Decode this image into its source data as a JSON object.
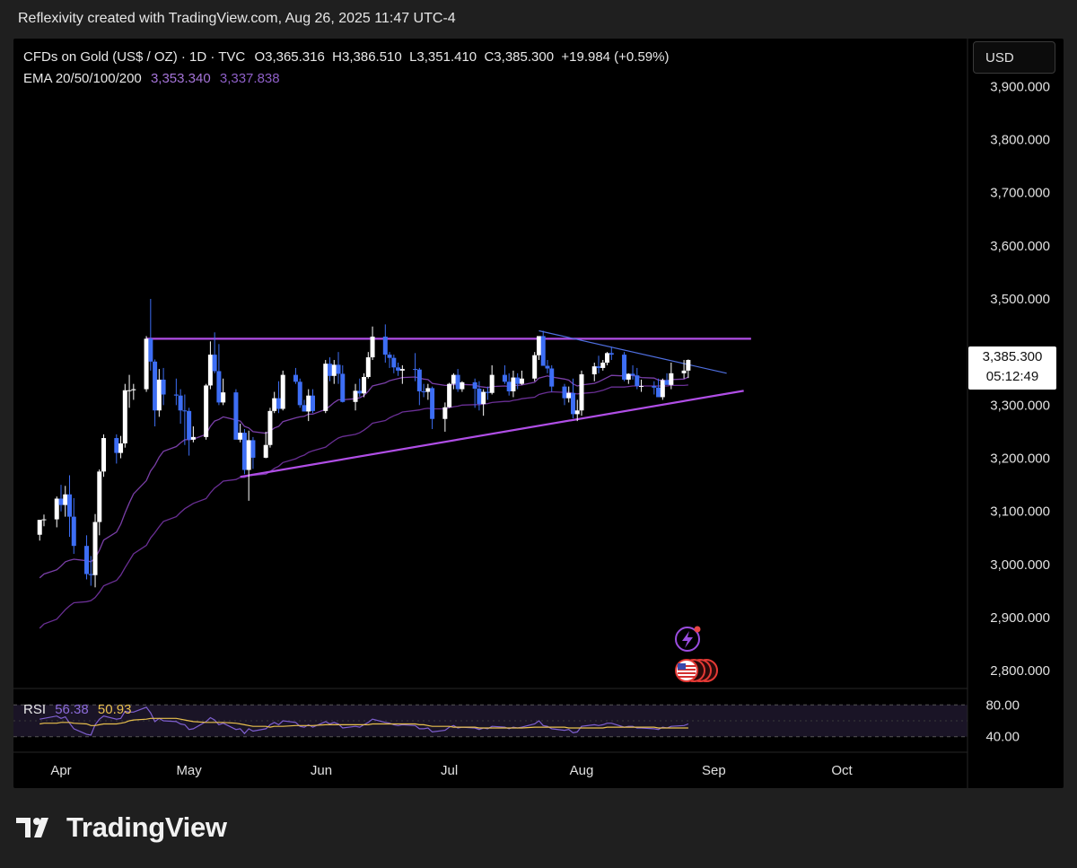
{
  "header": {
    "attribution": "Reflexivity created with TradingView.com, Aug 26, 2025 11:47 UTC-4"
  },
  "legend": {
    "symbol": "CFDs on Gold (US$ / OZ) · 1D · TVC",
    "ohlc": "O3,365.316  H3,386.510  L3,351.410  C3,385.300  +19.984 (+0.59%)",
    "ema_label": "EMA 20/50/100/200",
    "ema_value_1": "3,353.340",
    "ema_value_2": "3,337.838"
  },
  "price_axis": {
    "currency": "USD",
    "ticks": [
      "3,900.000",
      "3,800.000",
      "3,700.000",
      "3,600.000",
      "3,500.000",
      "3,400.000",
      "3,300.000",
      "3,200.000",
      "3,100.000",
      "3,000.000",
      "2,900.000",
      "2,800.000"
    ],
    "last_price": "3,385.300",
    "countdown": "05:12:49"
  },
  "time_axis": {
    "labels": [
      "Apr",
      "May",
      "Jun",
      "Jul",
      "Aug",
      "Sep",
      "Oct"
    ]
  },
  "rsi": {
    "label": "RSI",
    "value": "56.38",
    "ma_value": "50.93",
    "ticks": [
      "80.00",
      "40.00"
    ]
  },
  "footer": {
    "brand": "TradingView"
  },
  "colors": {
    "up_candle": "#ffffff",
    "down_candle": "#3d6ef5",
    "ema20": "#7a3fa8",
    "ema50": "#6a2f95",
    "trendline": "#b04ee6",
    "rsi_line": "#7e5fcf",
    "rsi_ma": "#e8c04d"
  },
  "chart_data": {
    "type": "candlestick",
    "title": "CFDs on Gold (US$ / OZ) · 1D · TVC",
    "ylim": [
      2770,
      3990
    ],
    "yticks": [
      2800,
      2900,
      3000,
      3100,
      3200,
      3300,
      3400,
      3500,
      3600,
      3700,
      3800,
      3900
    ],
    "x": [
      "2025-03-27",
      "2025-03-28",
      "2025-03-31",
      "2025-04-01",
      "2025-04-02",
      "2025-04-03",
      "2025-04-04",
      "2025-04-07",
      "2025-04-08",
      "2025-04-09",
      "2025-04-10",
      "2025-04-11",
      "2025-04-14",
      "2025-04-15",
      "2025-04-16",
      "2025-04-17",
      "2025-04-18",
      "2025-04-21",
      "2025-04-22",
      "2025-04-23",
      "2025-04-24",
      "2025-04-25",
      "2025-04-28",
      "2025-04-29",
      "2025-04-30",
      "2025-05-01",
      "2025-05-02",
      "2025-05-05",
      "2025-05-06",
      "2025-05-07",
      "2025-05-08",
      "2025-05-09",
      "2025-05-12",
      "2025-05-13",
      "2025-05-14",
      "2025-05-15",
      "2025-05-16",
      "2025-05-19",
      "2025-05-20",
      "2025-05-21",
      "2025-05-22",
      "2025-05-23",
      "2025-05-26",
      "2025-05-27",
      "2025-05-28",
      "2025-05-29",
      "2025-05-30",
      "2025-06-02",
      "2025-06-03",
      "2025-06-04",
      "2025-06-05",
      "2025-06-06",
      "2025-06-09",
      "2025-06-10",
      "2025-06-11",
      "2025-06-12",
      "2025-06-13",
      "2025-06-16",
      "2025-06-17",
      "2025-06-18",
      "2025-06-19",
      "2025-06-20",
      "2025-06-23",
      "2025-06-24",
      "2025-06-25",
      "2025-06-26",
      "2025-06-27",
      "2025-06-30",
      "2025-07-01",
      "2025-07-02",
      "2025-07-03",
      "2025-07-04",
      "2025-07-07",
      "2025-07-08",
      "2025-07-09",
      "2025-07-10",
      "2025-07-11",
      "2025-07-14",
      "2025-07-15",
      "2025-07-16",
      "2025-07-17",
      "2025-07-18",
      "2025-07-21",
      "2025-07-22",
      "2025-07-23",
      "2025-07-24",
      "2025-07-25",
      "2025-07-28",
      "2025-07-29",
      "2025-07-30",
      "2025-07-31",
      "2025-08-01",
      "2025-08-04",
      "2025-08-05",
      "2025-08-06",
      "2025-08-07",
      "2025-08-08",
      "2025-08-11",
      "2025-08-12",
      "2025-08-13",
      "2025-08-14",
      "2025-08-15",
      "2025-08-18",
      "2025-08-19",
      "2025-08-20",
      "2025-08-21",
      "2025-08-22",
      "2025-08-25",
      "2025-08-26"
    ],
    "open": [
      3056,
      3084,
      3085,
      3124,
      3112,
      3132,
      3090,
      3035,
      2982,
      2980,
      3080,
      3175,
      3238,
      3210,
      3228,
      3328,
      3328,
      3330,
      3425,
      3382,
      3290,
      3348,
      3320,
      3318,
      3290,
      3289,
      3235,
      3240,
      3337,
      3395,
      3364,
      3305,
      3324,
      3235,
      3248,
      3178,
      3234,
      3201,
      3225,
      3289,
      3313,
      3293,
      3357,
      3344,
      3300,
      3288,
      3318,
      3289,
      3378,
      3355,
      3376,
      3359,
      3306,
      3327,
      3322,
      3353,
      3390,
      3429,
      3395,
      3389,
      3371,
      3365,
      3368,
      3367,
      3326,
      3325,
      3332,
      3274,
      3296,
      3340,
      3357,
      3330,
      3343,
      3331,
      3302,
      3325,
      3323,
      3357,
      3344,
      3326,
      3352,
      3340,
      3350,
      3394,
      3430,
      3374,
      3369,
      3335,
      3313,
      3323,
      3283,
      3290,
      3358,
      3373,
      3370,
      3380,
      3398,
      3395,
      3348,
      3359,
      3356,
      3336,
      3336,
      3333,
      3315,
      3347,
      3338,
      3360,
      3365
    ],
    "high": [
      3084,
      3094,
      3128,
      3150,
      3148,
      3168,
      3125,
      3055,
      3016,
      3095,
      3179,
      3245,
      3245,
      3242,
      3340,
      3357,
      3340,
      3430,
      3500,
      3386,
      3368,
      3370,
      3350,
      3330,
      3320,
      3295,
      3260,
      3340,
      3420,
      3437,
      3415,
      3350,
      3330,
      3265,
      3255,
      3252,
      3240,
      3250,
      3295,
      3325,
      3345,
      3365,
      3370,
      3350,
      3310,
      3330,
      3330,
      3385,
      3390,
      3385,
      3400,
      3375,
      3340,
      3350,
      3360,
      3400,
      3448,
      3452,
      3400,
      3395,
      3380,
      3375,
      3398,
      3370,
      3340,
      3340,
      3335,
      3305,
      3342,
      3360,
      3368,
      3345,
      3350,
      3345,
      3330,
      3335,
      3375,
      3375,
      3360,
      3365,
      3360,
      3365,
      3400,
      3420,
      3440,
      3385,
      3375,
      3340,
      3335,
      3350,
      3310,
      3365,
      3380,
      3393,
      3385,
      3400,
      3410,
      3400,
      3360,
      3375,
      3370,
      3348,
      3345,
      3350,
      3350,
      3360,
      3380,
      3385,
      3386
    ],
    "low": [
      3045,
      3072,
      3070,
      3100,
      3090,
      3052,
      3020,
      2972,
      2960,
      2957,
      3055,
      3165,
      3190,
      3200,
      3220,
      3295,
      3310,
      3325,
      3365,
      3260,
      3278,
      3300,
      3300,
      3265,
      3225,
      3205,
      3230,
      3235,
      3330,
      3360,
      3300,
      3300,
      3240,
      3230,
      3170,
      3120,
      3180,
      3200,
      3220,
      3285,
      3285,
      3290,
      3340,
      3295,
      3290,
      3270,
      3285,
      3285,
      3345,
      3340,
      3340,
      3305,
      3290,
      3316,
      3315,
      3350,
      3385,
      3380,
      3370,
      3360,
      3355,
      3340,
      3345,
      3300,
      3315,
      3310,
      3255,
      3250,
      3295,
      3330,
      3325,
      3325,
      3295,
      3290,
      3280,
      3310,
      3320,
      3340,
      3318,
      3315,
      3330,
      3338,
      3345,
      3385,
      3375,
      3360,
      3325,
      3300,
      3305,
      3275,
      3270,
      3280,
      3345,
      3360,
      3365,
      3375,
      3385,
      3345,
      3340,
      3348,
      3330,
      3325,
      3320,
      3315,
      3310,
      3340,
      3330,
      3350,
      3351
    ],
    "close": [
      3084,
      3085,
      3124,
      3112,
      3132,
      3090,
      3035,
      2982,
      2980,
      3080,
      3175,
      3238,
      3210,
      3228,
      3328,
      3328,
      3330,
      3425,
      3382,
      3290,
      3348,
      3320,
      3318,
      3290,
      3289,
      3235,
      3240,
      3337,
      3395,
      3364,
      3305,
      3324,
      3235,
      3248,
      3178,
      3234,
      3201,
      3225,
      3289,
      3313,
      3293,
      3357,
      3344,
      3300,
      3288,
      3318,
      3289,
      3378,
      3355,
      3376,
      3359,
      3306,
      3327,
      3322,
      3353,
      3390,
      3429,
      3395,
      3389,
      3371,
      3365,
      3368,
      3367,
      3326,
      3325,
      3332,
      3274,
      3296,
      3340,
      3357,
      3330,
      3343,
      3331,
      3302,
      3325,
      3323,
      3357,
      3344,
      3326,
      3352,
      3340,
      3350,
      3394,
      3430,
      3374,
      3369,
      3335,
      3313,
      3323,
      3283,
      3290,
      3358,
      3373,
      3370,
      3380,
      3398,
      3395,
      3348,
      3359,
      3356,
      3336,
      3336,
      3333,
      3315,
      3347,
      3338,
      3360,
      3365,
      3385
    ],
    "ema20": [
      2975,
      2982,
      2990,
      2997,
      3005,
      3008,
      3010,
      3007,
      3005,
      3012,
      3027,
      3046,
      3061,
      3076,
      3097,
      3116,
      3133,
      3158,
      3176,
      3187,
      3202,
      3213,
      3222,
      3229,
      3235,
      3235,
      3236,
      3245,
      3260,
      3270,
      3273,
      3278,
      3272,
      3270,
      3260,
      3257,
      3250,
      3247,
      3251,
      3257,
      3260,
      3269,
      3276,
      3278,
      3279,
      3283,
      3283,
      3292,
      3298,
      3305,
      3310,
      3310,
      3312,
      3314,
      3318,
      3326,
      3336,
      3342,
      3346,
      3348,
      3350,
      3352,
      3353,
      3351,
      3349,
      3348,
      3341,
      3337,
      3337,
      3339,
      3338,
      3339,
      3338,
      3335,
      3334,
      3333,
      3335,
      3336,
      3335,
      3337,
      3337,
      3338,
      3343,
      3351,
      3353,
      3355,
      3353,
      3349,
      3347,
      3340,
      3336,
      3338,
      3341,
      3344,
      3348,
      3352,
      3356,
      3355,
      3356,
      3356,
      3354,
      3352,
      3351,
      3347,
      3347,
      3346,
      3348,
      3349,
      3353
    ],
    "ema50": [
      2880,
      2888,
      2897,
      2906,
      2915,
      2922,
      2928,
      2930,
      2932,
      2938,
      2948,
      2960,
      2970,
      2980,
      2994,
      3007,
      3020,
      3036,
      3050,
      3060,
      3071,
      3081,
      3090,
      3098,
      3105,
      3110,
      3115,
      3124,
      3135,
      3144,
      3150,
      3157,
      3160,
      3164,
      3164,
      3167,
      3168,
      3170,
      3175,
      3181,
      3185,
      3192,
      3199,
      3203,
      3206,
      3211,
      3214,
      3221,
      3227,
      3233,
      3238,
      3241,
      3245,
      3248,
      3253,
      3259,
      3266,
      3271,
      3276,
      3280,
      3283,
      3287,
      3290,
      3291,
      3293,
      3294,
      3293,
      3293,
      3295,
      3297,
      3298,
      3300,
      3301,
      3301,
      3302,
      3303,
      3305,
      3307,
      3307,
      3309,
      3310,
      3312,
      3315,
      3320,
      3322,
      3324,
      3325,
      3324,
      3324,
      3322,
      3321,
      3322,
      3324,
      3326,
      3328,
      3331,
      3334,
      3334,
      3335,
      3336,
      3336,
      3336,
      3336,
      3336,
      3336,
      3336,
      3337,
      3337,
      3338
    ],
    "triangle_resistance": {
      "x": [
        "2025-04-21",
        "2025-08-26"
      ],
      "y": [
        3425,
        3425
      ]
    },
    "triangle_support": {
      "x": [
        "2025-05-13",
        "2025-09-08"
      ],
      "y": [
        3165,
        3327
      ]
    },
    "descending_trendline": {
      "x": [
        "2025-07-22",
        "2025-09-04"
      ],
      "y": [
        3440,
        3360
      ]
    },
    "rsi": {
      "ylim": [
        25,
        95
      ],
      "ticks": [
        80,
        40
      ],
      "rsi_values": [
        62,
        63,
        66,
        63,
        65,
        57,
        50,
        43,
        42,
        55,
        62,
        66,
        62,
        63,
        72,
        71,
        71,
        77,
        70,
        59,
        63,
        60,
        59,
        56,
        55,
        49,
        50,
        59,
        64,
        61,
        55,
        57,
        49,
        50,
        44,
        50,
        47,
        50,
        55,
        58,
        55,
        60,
        58,
        53,
        52,
        55,
        52,
        59,
        56,
        58,
        56,
        51,
        53,
        52,
        55,
        58,
        62,
        58,
        57,
        55,
        54,
        55,
        54,
        50,
        50,
        51,
        46,
        48,
        52,
        54,
        51,
        52,
        51,
        49,
        51,
        50,
        53,
        52,
        50,
        52,
        51,
        52,
        56,
        60,
        54,
        53,
        50,
        48,
        49,
        45,
        46,
        53,
        55,
        54,
        55,
        57,
        57,
        52,
        53,
        53,
        51,
        51,
        50,
        49,
        52,
        51,
        53,
        54,
        56
      ],
      "ma_values": [
        56,
        57,
        57,
        58,
        58,
        58,
        57,
        56,
        54,
        54,
        55,
        56,
        56,
        57,
        58,
        60,
        61,
        62,
        63,
        63,
        63,
        63,
        63,
        62,
        61,
        60,
        59,
        58,
        58,
        58,
        58,
        58,
        57,
        56,
        55,
        54,
        53,
        53,
        52,
        53,
        53,
        53,
        54,
        54,
        54,
        54,
        54,
        55,
        55,
        55,
        55,
        55,
        55,
        55,
        55,
        55,
        56,
        56,
        56,
        56,
        56,
        56,
        56,
        55,
        55,
        54,
        53,
        53,
        53,
        52,
        52,
        52,
        52,
        51,
        51,
        51,
        51,
        51,
        51,
        51,
        51,
        51,
        52,
        52,
        52,
        52,
        52,
        52,
        51,
        51,
        51,
        51,
        51,
        51,
        51,
        52,
        52,
        52,
        52,
        52,
        52,
        52,
        52,
        51,
        51,
        51,
        51,
        51,
        51
      ]
    }
  }
}
